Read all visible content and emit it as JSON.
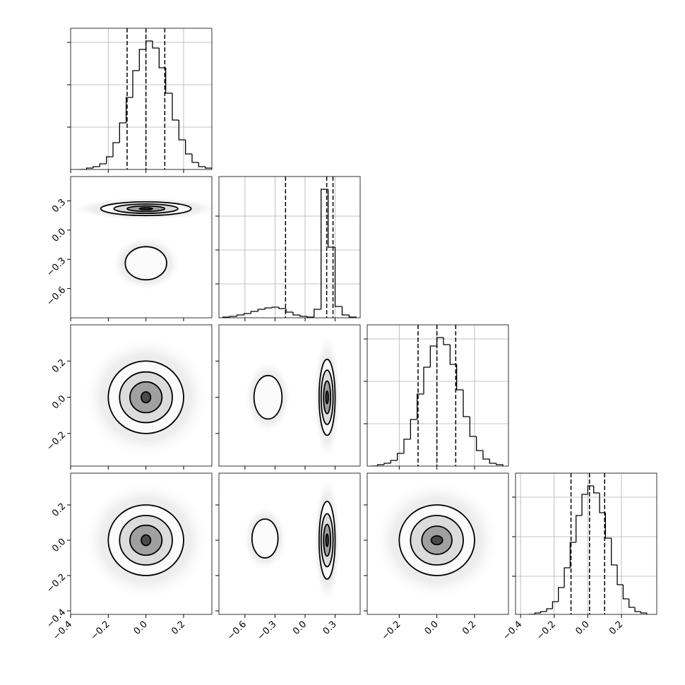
{
  "chart_data": [
    {
      "type": "histogram",
      "xlim": [
        -0.4,
        0.35
      ],
      "xticks": [
        -0.4,
        -0.2,
        0,
        0.2
      ],
      "ylim": [
        0,
        1
      ],
      "yticks": [
        0.3,
        0.6,
        0.9
      ],
      "grid": true,
      "bins": [
        -0.35,
        -0.315,
        -0.28,
        -0.245,
        -0.21,
        -0.175,
        -0.14,
        -0.105,
        -0.07,
        -0.035,
        0,
        0.035,
        0.07,
        0.105,
        0.14,
        0.175,
        0.21,
        0.245,
        0.28,
        0.315,
        0.35
      ],
      "values": [
        0.0,
        0.01,
        0.02,
        0.04,
        0.09,
        0.19,
        0.33,
        0.51,
        0.7,
        0.85,
        0.91,
        0.86,
        0.72,
        0.54,
        0.35,
        0.21,
        0.11,
        0.05,
        0.02,
        0.01
      ],
      "quantiles": [
        -0.1,
        0,
        0.1
      ]
    },
    {
      "type": "contour",
      "xlim": [
        -0.4,
        0.35
      ],
      "xticks": [
        -0.4,
        -0.2,
        0,
        0.2
      ],
      "ylim": [
        -0.9,
        0.55
      ],
      "yticks": [
        {
          "value": -0.6,
          "label": "−0.6"
        },
        {
          "value": -0.3,
          "label": "−0.3"
        },
        {
          "value": 0,
          "label": "0.0"
        },
        0.3
      ],
      "contours": [
        [
          {
            "x": 0,
            "y": 0.22,
            "rx": 0.24,
            "ry": 0.07
          },
          {
            "x": 0,
            "y": 0.22,
            "rx": 0.17,
            "ry": 0.048
          },
          {
            "x": 0,
            "y": 0.22,
            "rx": 0.1,
            "ry": 0.028
          },
          {
            "x": 0,
            "y": 0.22,
            "rx": 0.035,
            "ry": 0.01
          }
        ],
        [
          {
            "x": 0,
            "y": -0.34,
            "rx": 0.11,
            "ry": 0.17
          }
        ]
      ]
    },
    {
      "type": "histogram",
      "xlim": [
        -0.86,
        0.55
      ],
      "xticks": [
        -0.6,
        -0.3,
        0,
        0.3
      ],
      "ylim": [
        0,
        1
      ],
      "yticks": [
        0.24,
        0.48,
        0.72
      ],
      "grid": true,
      "bins": [
        -0.82,
        -0.75,
        -0.68,
        -0.61,
        -0.54,
        -0.47,
        -0.4,
        -0.33,
        -0.26,
        -0.19,
        -0.12,
        -0.05,
        0.02,
        0.09,
        0.16,
        0.23,
        0.3,
        0.37,
        0.44,
        0.51
      ],
      "values": [
        0.005,
        0.01,
        0.02,
        0.03,
        0.045,
        0.06,
        0.07,
        0.075,
        0.065,
        0.04,
        0.02,
        0.01,
        0.005,
        0.06,
        0.91,
        0.5,
        0.08,
        0.02,
        0.005
      ],
      "quantiles": [
        -0.195,
        0.216,
        0.279
      ]
    },
    {
      "type": "contour",
      "xlim": [
        -0.4,
        0.35
      ],
      "xticks": [
        -0.4,
        -0.2,
        0,
        0.2
      ],
      "ylim": [
        -0.38,
        0.4
      ],
      "yticks": [
        {
          "value": -0.2,
          "label": "−0.2"
        },
        {
          "value": 0,
          "label": "0.0"
        },
        0.2
      ],
      "contours": [
        [
          {
            "x": 0,
            "y": 0,
            "rx": 0.2,
            "ry": 0.2
          },
          {
            "x": 0,
            "y": 0,
            "rx": 0.14,
            "ry": 0.14
          },
          {
            "x": 0,
            "y": 0,
            "rx": 0.085,
            "ry": 0.085
          },
          {
            "x": 0,
            "y": 0,
            "rx": 0.025,
            "ry": 0.03
          }
        ]
      ]
    },
    {
      "type": "contour",
      "xlim": [
        -0.86,
        0.55
      ],
      "xticks": [
        -0.6,
        -0.3,
        0,
        0.3
      ],
      "ylim": [
        -0.38,
        0.4
      ],
      "yticks": [
        -0.2,
        0,
        0.2
      ],
      "contours": [
        [
          {
            "x": 0.22,
            "y": 0,
            "rx": 0.08,
            "ry": 0.21
          },
          {
            "x": 0.22,
            "y": 0,
            "rx": 0.06,
            "ry": 0.15
          },
          {
            "x": 0.22,
            "y": 0,
            "rx": 0.035,
            "ry": 0.09
          },
          {
            "x": 0.22,
            "y": 0,
            "rx": 0.012,
            "ry": 0.035
          }
        ],
        [
          {
            "x": -0.37,
            "y": 0.0,
            "rx": 0.14,
            "ry": 0.12
          }
        ]
      ]
    },
    {
      "type": "histogram",
      "xlim": [
        -0.37,
        0.38
      ],
      "xticks": [
        -0.2,
        0,
        0.2
      ],
      "ylim": [
        0,
        1
      ],
      "yticks": [
        0.3,
        0.6,
        0.9
      ],
      "grid": true,
      "bins": [
        -0.35,
        -0.315,
        -0.28,
        -0.245,
        -0.21,
        -0.175,
        -0.14,
        -0.105,
        -0.07,
        -0.035,
        0,
        0.035,
        0.07,
        0.105,
        0.14,
        0.175,
        0.21,
        0.245,
        0.28,
        0.315,
        0.35
      ],
      "values": [
        0.0,
        0.01,
        0.02,
        0.04,
        0.09,
        0.19,
        0.33,
        0.51,
        0.7,
        0.85,
        0.91,
        0.86,
        0.72,
        0.54,
        0.35,
        0.21,
        0.11,
        0.05,
        0.02,
        0.01
      ],
      "quantiles": [
        -0.1,
        0,
        0.1
      ]
    },
    {
      "type": "contour",
      "xlim": [
        -0.4,
        0.35
      ],
      "xticks": [
        {
          "value": -0.4,
          "label": "−0.4"
        },
        {
          "value": -0.2,
          "label": "−0.2"
        },
        {
          "value": 0,
          "label": "0.0"
        },
        0.2
      ],
      "ylim": [
        -0.42,
        0.38
      ],
      "yticks": [
        {
          "value": -0.4,
          "label": "−0.4"
        },
        {
          "value": -0.2,
          "label": "−0.2"
        },
        {
          "value": 0,
          "label": "0.0"
        },
        0.2
      ],
      "contours": [
        [
          {
            "x": 0,
            "y": 0,
            "rx": 0.2,
            "ry": 0.2
          },
          {
            "x": 0,
            "y": 0,
            "rx": 0.14,
            "ry": 0.14
          },
          {
            "x": 0,
            "y": 0,
            "rx": 0.085,
            "ry": 0.085
          },
          {
            "x": 0,
            "y": 0,
            "rx": 0.025,
            "ry": 0.03
          }
        ]
      ]
    },
    {
      "type": "contour",
      "xlim": [
        -0.86,
        0.55
      ],
      "xticks": [
        {
          "value": -0.6,
          "label": "−0.6"
        },
        {
          "value": -0.3,
          "label": "−0.3"
        },
        {
          "value": 0,
          "label": "0.0"
        },
        0.3
      ],
      "ylim": [
        -0.42,
        0.38
      ],
      "yticks": [
        -0.4,
        -0.2,
        0,
        0.2
      ],
      "contours": [
        [
          {
            "x": 0.22,
            "y": 0,
            "rx": 0.08,
            "ry": 0.22
          },
          {
            "x": 0.22,
            "y": 0,
            "rx": 0.06,
            "ry": 0.15
          },
          {
            "x": 0.22,
            "y": 0,
            "rx": 0.035,
            "ry": 0.09
          },
          {
            "x": 0.22,
            "y": 0,
            "rx": 0.012,
            "ry": 0.035
          }
        ],
        [
          {
            "x": -0.4,
            "y": 0.01,
            "rx": 0.13,
            "ry": 0.11
          }
        ]
      ]
    },
    {
      "type": "contour",
      "xlim": [
        -0.37,
        0.38
      ],
      "xticks": [
        {
          "value": -0.2,
          "label": "−0.2"
        },
        {
          "value": 0,
          "label": "0.0"
        },
        0.2
      ],
      "ylim": [
        -0.42,
        0.38
      ],
      "yticks": [
        -0.4,
        -0.2,
        0,
        0.2
      ],
      "contours": [
        [
          {
            "x": 0,
            "y": 0,
            "rx": 0.2,
            "ry": 0.2
          },
          {
            "x": 0,
            "y": 0,
            "rx": 0.14,
            "ry": 0.14
          },
          {
            "x": 0,
            "y": 0,
            "rx": 0.08,
            "ry": 0.08
          },
          {
            "x": 0,
            "y": 0,
            "rx": 0.03,
            "ry": 0.025
          }
        ]
      ]
    },
    {
      "type": "histogram",
      "xlim": [
        -0.43,
        0.41
      ],
      "xticks": [
        {
          "value": -0.4,
          "label": "−0.4"
        },
        {
          "value": -0.2,
          "label": "−0.2"
        },
        {
          "value": 0,
          "label": "0.0"
        },
        0.2
      ],
      "ylim": [
        0,
        1
      ],
      "yticks": [
        0.27,
        0.55,
        0.83
      ],
      "grid": true,
      "bins": [
        -0.35,
        -0.315,
        -0.28,
        -0.245,
        -0.21,
        -0.175,
        -0.14,
        -0.105,
        -0.07,
        -0.035,
        0,
        0.035,
        0.07,
        0.105,
        0.14,
        0.175,
        0.21,
        0.245,
        0.28,
        0.315,
        0.35
      ],
      "values": [
        0.0,
        0.01,
        0.02,
        0.04,
        0.09,
        0.19,
        0.33,
        0.51,
        0.7,
        0.85,
        0.91,
        0.86,
        0.72,
        0.54,
        0.35,
        0.21,
        0.11,
        0.05,
        0.02,
        0.01
      ],
      "quantiles": [
        -0.1,
        0.01,
        0.1
      ]
    }
  ]
}
